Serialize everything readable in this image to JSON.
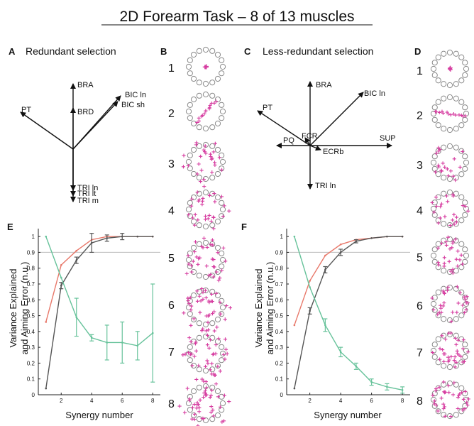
{
  "title": "2D Forearm Task – 8 of 13 muscles",
  "colors": {
    "variance": "#e8786a",
    "error": "#66c29a",
    "grey": "#555555",
    "magenta": "#d63ca0",
    "circle": "#8a8a8a"
  },
  "panels": {
    "A": {
      "letter": "A",
      "title": "Redundant selection",
      "muscles": [
        "BRA",
        "BRD",
        "BIC ln",
        "BIC sh",
        "PT",
        "TRI ln",
        "TRI lt",
        "TRI m"
      ]
    },
    "B": {
      "letter": "B",
      "row_labels": [
        "1",
        "2",
        "3",
        "4",
        "5",
        "6",
        "7",
        "8"
      ]
    },
    "C": {
      "letter": "C",
      "title": "Less-redundant selection",
      "muscles": [
        "BRA",
        "BIC ln",
        "PT",
        "PQ",
        "FCR",
        "SUP",
        "ECRb",
        "TRI ln"
      ]
    },
    "D": {
      "letter": "D",
      "row_labels": [
        "1",
        "2",
        "3",
        "4",
        "5",
        "6",
        "7",
        "8"
      ]
    },
    "E": {
      "letter": "E"
    },
    "F": {
      "letter": "F"
    }
  },
  "chart_data": [
    {
      "panel": "E",
      "type": "line",
      "xlabel": "Synergy number",
      "ylabel": "Variance Explained and Aiming Error (n.u.)",
      "xlim": [
        0.5,
        8.5
      ],
      "ylim": [
        0,
        1.05
      ],
      "xticks": [
        2,
        4,
        6,
        8
      ],
      "yticks": [
        0,
        0.1,
        0.2,
        0.3,
        0.4,
        0.5,
        0.6,
        0.7,
        0.8,
        0.9,
        1
      ],
      "threshold": 0.9,
      "x": [
        1,
        2,
        3,
        4,
        5,
        6,
        7,
        8
      ],
      "series": [
        {
          "role": "variance-selected",
          "color": "#e8786a",
          "values": [
            0.46,
            0.82,
            0.91,
            0.98,
            1.0,
            1.0,
            1.0,
            1.0
          ],
          "err": [
            0,
            0,
            0,
            0,
            0,
            0,
            0,
            0
          ]
        },
        {
          "role": "variance-random",
          "color": "#555555",
          "values": [
            0.04,
            0.69,
            0.85,
            0.96,
            0.99,
            1.0,
            1.0,
            1.0
          ],
          "err": [
            0,
            0.02,
            0.02,
            0.06,
            0.02,
            0.02,
            0,
            0
          ]
        },
        {
          "role": "aiming-error",
          "color": "#66c29a",
          "values": [
            1.0,
            0.74,
            0.49,
            0.36,
            0.33,
            0.33,
            0.31,
            0.39
          ],
          "err": [
            0,
            0,
            0.12,
            0.02,
            0.11,
            0.13,
            0.09,
            0.31
          ]
        }
      ]
    },
    {
      "panel": "F",
      "type": "line",
      "xlabel": "Synergy number",
      "ylabel": "Variance Explained and Aiming Error (n.u.)",
      "xlim": [
        0.5,
        8.5
      ],
      "ylim": [
        0,
        1.05
      ],
      "xticks": [
        2,
        4,
        6,
        8
      ],
      "yticks": [
        0,
        0.1,
        0.2,
        0.3,
        0.4,
        0.5,
        0.6,
        0.7,
        0.8,
        0.9,
        1
      ],
      "threshold": 0.9,
      "x": [
        1,
        2,
        3,
        4,
        5,
        6,
        7,
        8
      ],
      "series": [
        {
          "role": "variance-selected",
          "color": "#e8786a",
          "values": [
            0.44,
            0.72,
            0.88,
            0.95,
            0.98,
            0.99,
            1.0,
            1.0
          ],
          "err": [
            0,
            0,
            0,
            0,
            0,
            0,
            0,
            0
          ]
        },
        {
          "role": "variance-random",
          "color": "#555555",
          "values": [
            0.04,
            0.53,
            0.79,
            0.9,
            0.97,
            0.99,
            1.0,
            1.0
          ],
          "err": [
            0,
            0.02,
            0.02,
            0.02,
            0.01,
            0,
            0,
            0
          ]
        },
        {
          "role": "aiming-error",
          "color": "#66c29a",
          "values": [
            1.0,
            0.68,
            0.44,
            0.27,
            0.18,
            0.08,
            0.05,
            0.03
          ],
          "err": [
            0,
            0,
            0.04,
            0.03,
            0.02,
            0.02,
            0.02,
            0.02
          ]
        }
      ]
    }
  ]
}
